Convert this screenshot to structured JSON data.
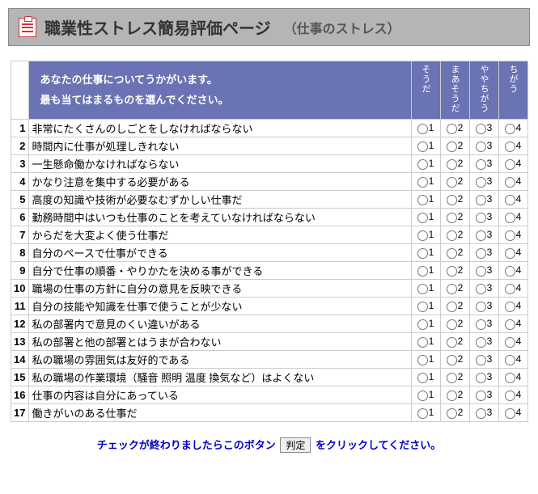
{
  "header": {
    "title": "職業性ストレス簡易評価ページ",
    "subtitle": "（仕事のストレス）"
  },
  "instruction": {
    "line1": "あなたの仕事についてうかがいます。",
    "line2": "最も当てはまるものを選んでください。"
  },
  "columns": [
    {
      "label": "そうだ",
      "value": "1"
    },
    {
      "label": "まあそうだ",
      "value": "2"
    },
    {
      "label": "ややちがう",
      "value": "3"
    },
    {
      "label": "ちがう",
      "value": "4"
    }
  ],
  "questions": [
    {
      "n": "1",
      "text": "非常にたくさんのしごとをしなければならない"
    },
    {
      "n": "2",
      "text": "時間内に仕事が処理しきれない"
    },
    {
      "n": "3",
      "text": "一生懸命働かなければならない"
    },
    {
      "n": "4",
      "text": "かなり注意を集中する必要がある"
    },
    {
      "n": "5",
      "text": "高度の知識や技術が必要なむずかしい仕事だ"
    },
    {
      "n": "6",
      "text": "勤務時間中はいつも仕事のことを考えていなければならない"
    },
    {
      "n": "7",
      "text": "からだを大変よく使う仕事だ"
    },
    {
      "n": "8",
      "text": "自分のペースで仕事ができる"
    },
    {
      "n": "9",
      "text": "自分で仕事の順番・やりかたを決める事ができる"
    },
    {
      "n": "10",
      "text": "職場の仕事の方針に自分の意見を反映できる"
    },
    {
      "n": "11",
      "text": "自分の技能や知識を仕事で使うことが少ない"
    },
    {
      "n": "12",
      "text": "私の部署内で意見のくい違いがある"
    },
    {
      "n": "13",
      "text": "私の部署と他の部署とはうまが合わない"
    },
    {
      "n": "14",
      "text": "私の職場の雰囲気は友好的である"
    },
    {
      "n": "15",
      "text": "私の職場の作業環境（騒音 照明 温度 換気など）はよくない"
    },
    {
      "n": "16",
      "text": "仕事の内容は自分にあっている"
    },
    {
      "n": "17",
      "text": "働きがいのある仕事だ"
    }
  ],
  "footer": {
    "before": "チェックが終わりましたらこのボタン",
    "button": "判定",
    "after": "をクリックしてください。"
  },
  "style": {
    "header_bg": "#b5b5b5",
    "table_header_bg": "#6a73b3",
    "table_header_fg": "#ffffff",
    "border_color": "#cccccc",
    "footer_color": "#0000cc"
  }
}
